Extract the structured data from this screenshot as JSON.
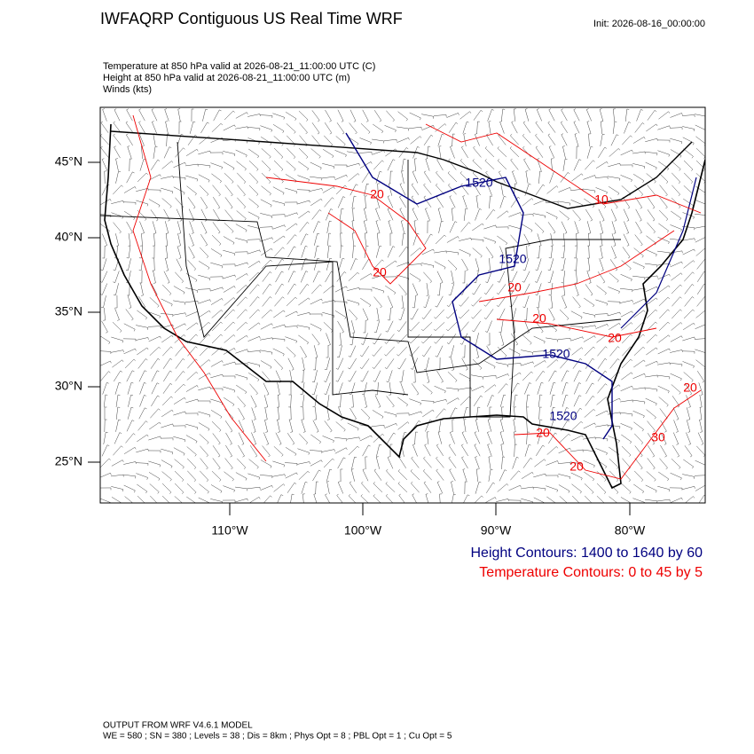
{
  "header": {
    "title": "IWFAQRP Contiguous US Real Time WRF",
    "init": "Init: 2026-08-16_00:00:00",
    "fields": [
      "Temperature at 850 hPa valid at 2026-08-21_11:00:00 UTC   (C)",
      "Height at 850 hPa valid at 2026-08-21_11:00:00 UTC   (m)",
      "Winds   (kts)"
    ]
  },
  "map": {
    "lat_labels": [
      "45°N",
      "40°N",
      "35°N",
      "30°N",
      "25°N"
    ],
    "lon_labels": [
      "110°W",
      "100°W",
      "90°W",
      "80°W"
    ],
    "height_contour_labels": [
      "1520",
      "1520",
      "1520",
      "1520"
    ],
    "temperature_contour_labels": [
      "20",
      "20",
      "20",
      "20",
      "20",
      "20",
      "20",
      "20",
      "10",
      "30"
    ]
  },
  "legend": [
    "Height Contours: 1400 to 1640 by 60",
    "Temperature Contours: 0 to 45 by 5"
  ],
  "footer": [
    "OUTPUT FROM WRF V4.6.1 MODEL",
    "WE = 580 ; SN = 380 ; Levels = 38 ; Dis = 8km ; Phys Opt = 8 ; PBL Opt = 1 ; Cu Opt = 5"
  ]
}
